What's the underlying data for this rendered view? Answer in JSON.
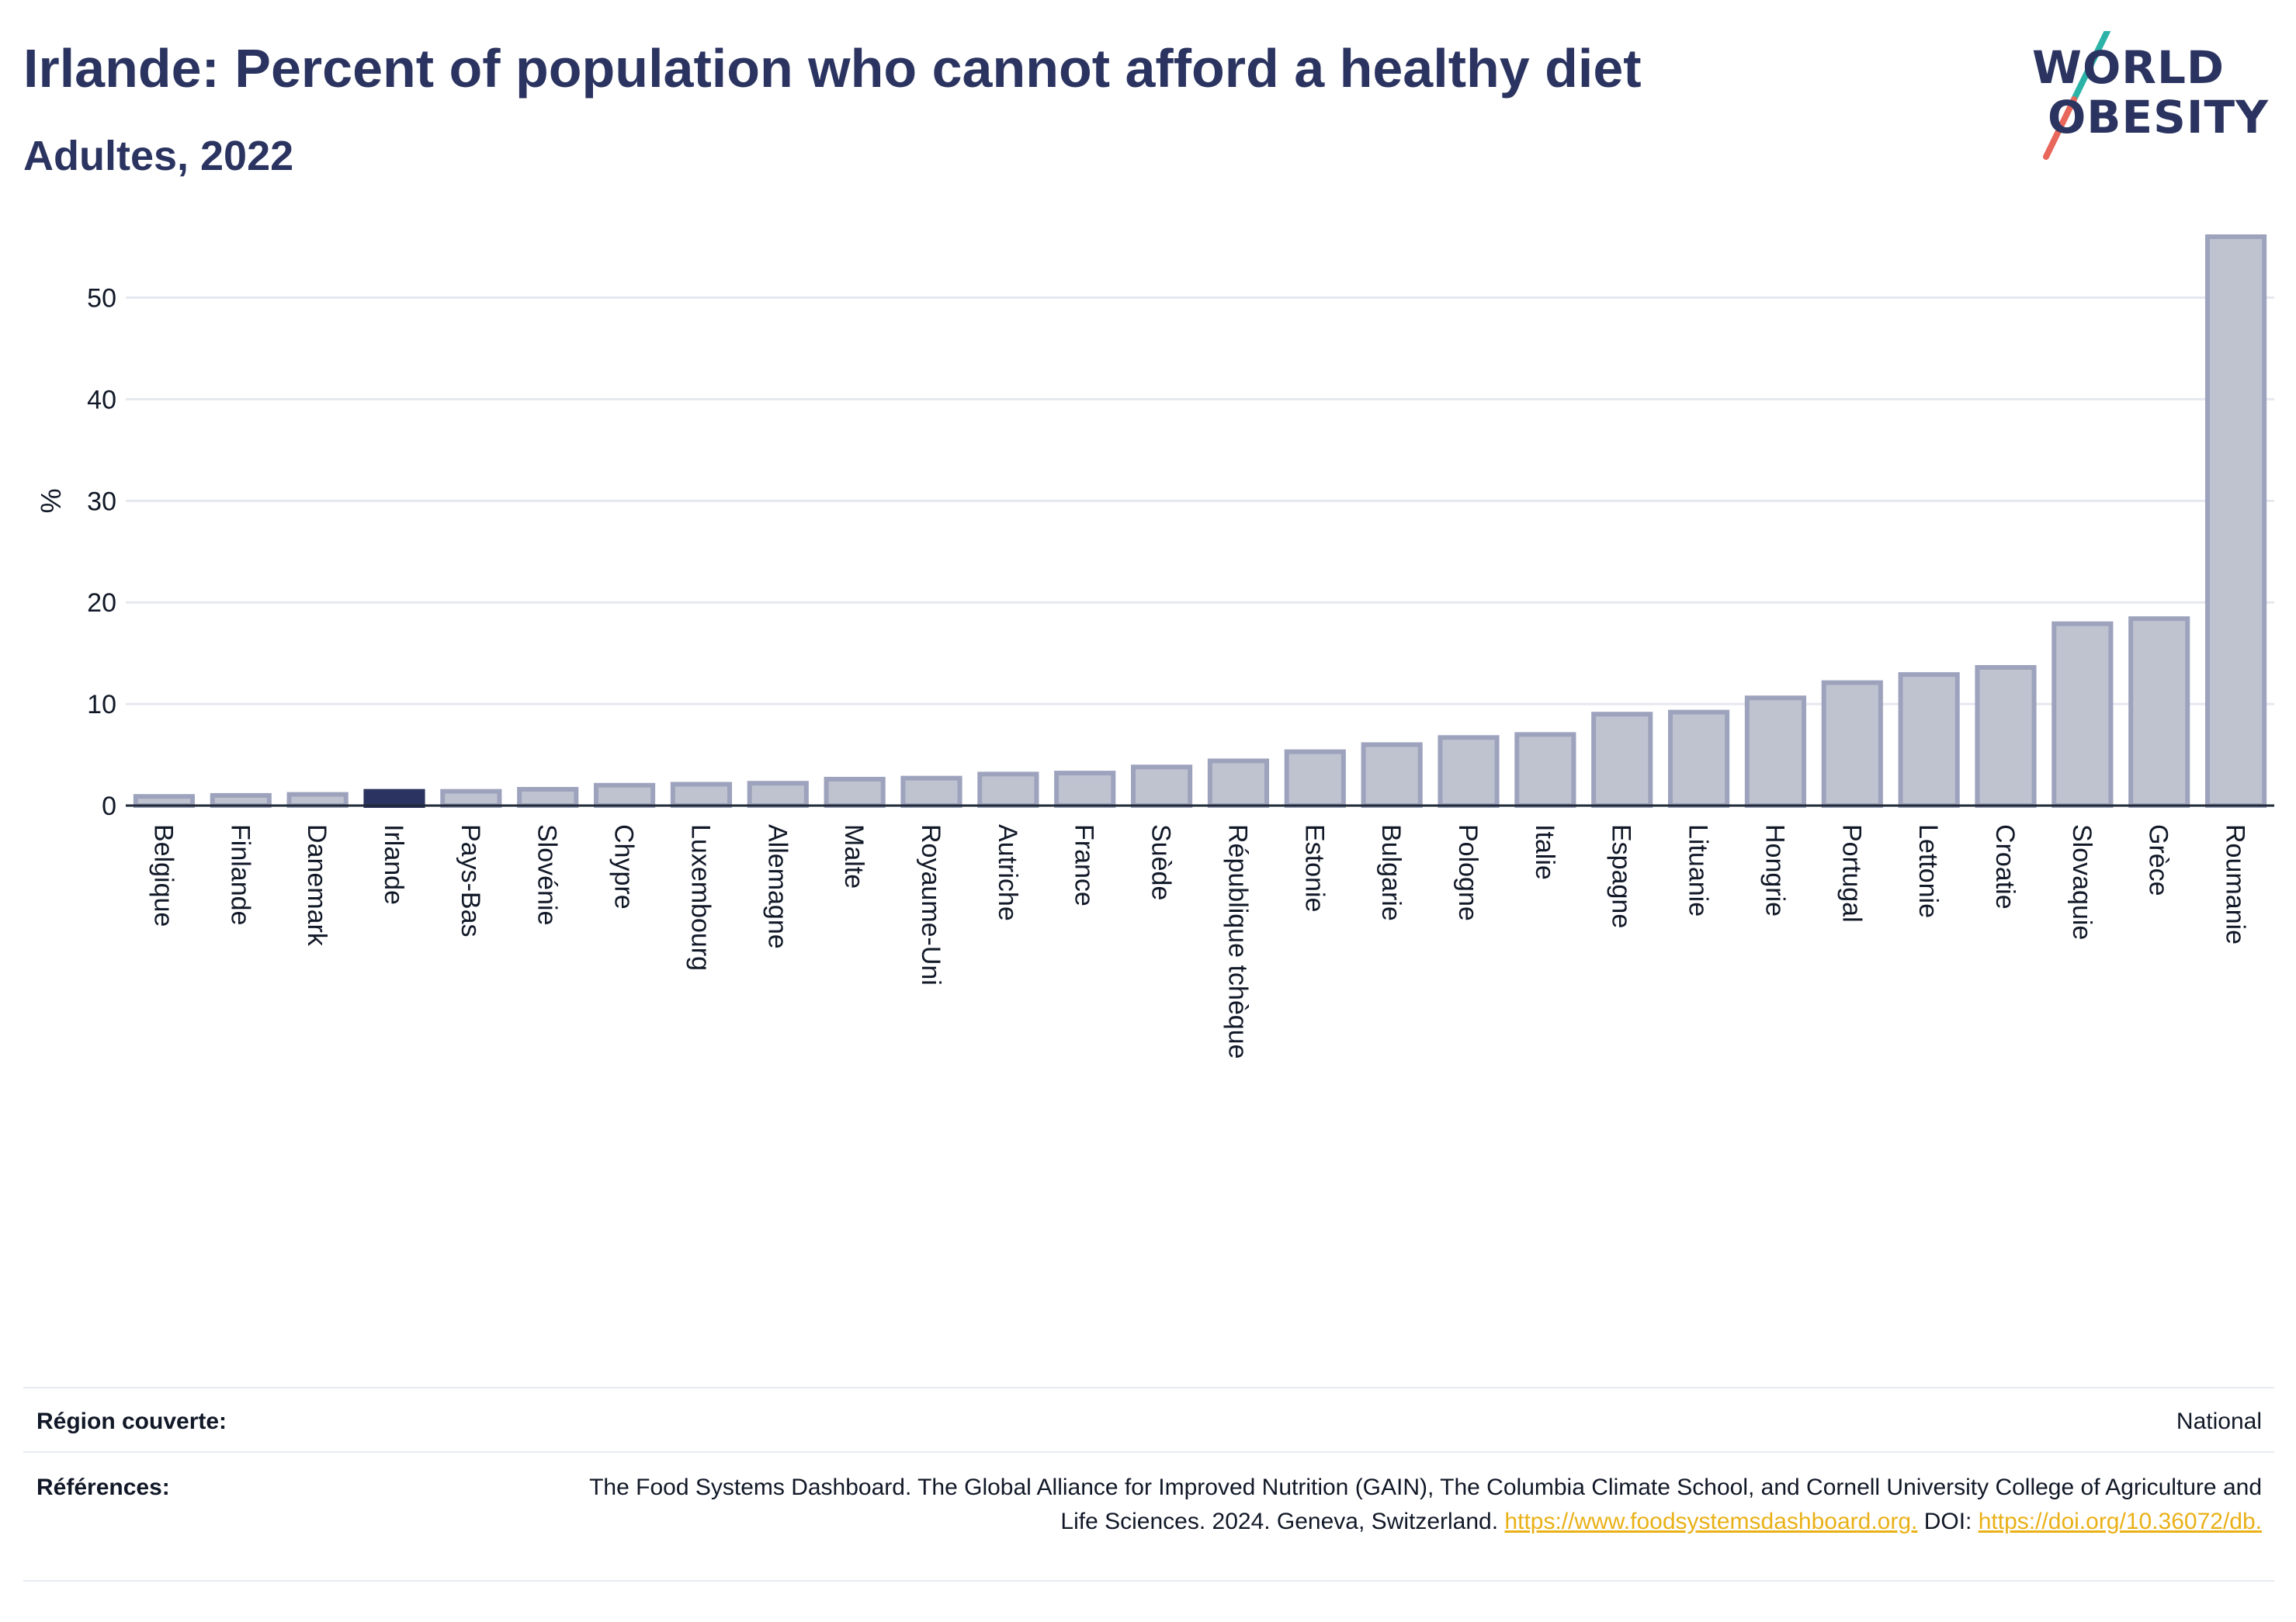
{
  "header": {
    "title": "Irlande: Percent of population who cannot afford a healthy diet",
    "subtitle": "Adultes, 2022"
  },
  "logo": {
    "line1": "WORLD",
    "line2": "OBESITY",
    "colors": {
      "text": "#2b3460",
      "slash_top": "#2bb3a8",
      "slash_bottom": "#e8665a"
    }
  },
  "colors": {
    "highlight": "#2b3460",
    "bar_fill": "#bfc3d0",
    "bar_stroke": "#9ea3bd",
    "grid": "#e6e8f0",
    "link": "#e9b017"
  },
  "chart_data": {
    "type": "bar",
    "title": "Irlande: Percent of population who cannot afford a healthy diet",
    "subtitle": "Adultes, 2022",
    "xlabel": "",
    "ylabel": "%",
    "ylim": [
      0,
      56
    ],
    "yticks": [
      0,
      10,
      20,
      30,
      40,
      50
    ],
    "grid": true,
    "highlight_category": "Irlande",
    "categories": [
      "Belgique",
      "Finlande",
      "Danemark",
      "Irlande",
      "Pays-Bas",
      "Slovénie",
      "Chypre",
      "Luxembourg",
      "Allemagne",
      "Malte",
      "Royaume-Uni",
      "Autriche",
      "France",
      "Suède",
      "République tchèque",
      "Estonie",
      "Bulgarie",
      "Pologne",
      "Italie",
      "Espagne",
      "Lituanie",
      "Hongrie",
      "Portugal",
      "Lettonie",
      "Croatie",
      "Slovaquie",
      "Grèce",
      "Roumanie"
    ],
    "values": [
      0.9,
      1.0,
      1.1,
      1.4,
      1.4,
      1.6,
      2.0,
      2.1,
      2.2,
      2.6,
      2.7,
      3.1,
      3.2,
      3.8,
      4.4,
      5.3,
      6.0,
      6.7,
      7.0,
      9.0,
      9.2,
      10.6,
      12.1,
      12.9,
      13.6,
      17.9,
      18.4,
      56.0
    ]
  },
  "footer": {
    "region_label": "Région couverte:",
    "region_value": "National",
    "refs_label": "Références:",
    "refs_text_1": "The Food Systems Dashboard. The Global Alliance for Improved Nutrition (GAIN), The Columbia Climate School, and Cornell University College of Agriculture and Life Sciences. 2024. Geneva, Switzerland.",
    "refs_link_1": "https://www.foodsystemsdashboard.org.",
    "refs_text_2": "DOI:",
    "refs_link_2": "https://doi.org/10.36072/db."
  }
}
